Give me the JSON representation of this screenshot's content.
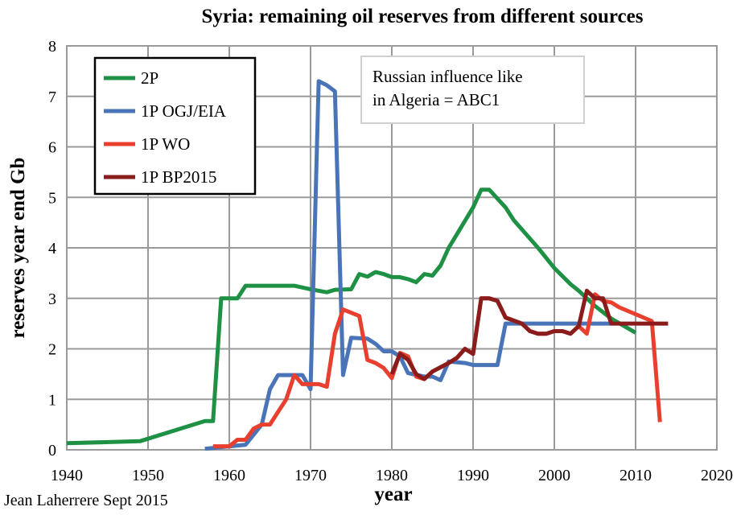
{
  "chart_data": {
    "type": "line",
    "title": "Syria: remaining oil reserves from different sources",
    "xlabel": "year",
    "ylabel": "reserves year end Gb",
    "xlim": [
      1940,
      2020
    ],
    "ylim": [
      0,
      8
    ],
    "x_ticks": [
      "1940",
      "1950",
      "1960",
      "1970",
      "1980",
      "1990",
      "2000",
      "2010",
      "2020"
    ],
    "y_ticks": [
      "0",
      "1",
      "2",
      "3",
      "4",
      "5",
      "6",
      "7",
      "8"
    ],
    "grid": true,
    "legend": "top-left",
    "annotation": [
      "Russian influence like",
      "in Algeria = ABC1"
    ],
    "credit": "Jean Laherrere Sept 2015",
    "series": [
      {
        "name": "2P",
        "color": "#1e9145",
        "points": [
          [
            1940,
            0.13
          ],
          [
            1949,
            0.17
          ],
          [
            1950,
            0.22
          ],
          [
            1957,
            0.57
          ],
          [
            1958,
            0.57
          ],
          [
            1959,
            3.0
          ],
          [
            1961,
            3.0
          ],
          [
            1962,
            3.25
          ],
          [
            1968,
            3.25
          ],
          [
            1970,
            3.18
          ],
          [
            1972,
            3.12
          ],
          [
            1973,
            3.17
          ],
          [
            1975,
            3.18
          ],
          [
            1976,
            3.48
          ],
          [
            1977,
            3.43
          ],
          [
            1978,
            3.52
          ],
          [
            1979,
            3.48
          ],
          [
            1980,
            3.42
          ],
          [
            1981,
            3.42
          ],
          [
            1982,
            3.38
          ],
          [
            1983,
            3.32
          ],
          [
            1984,
            3.48
          ],
          [
            1985,
            3.45
          ],
          [
            1986,
            3.65
          ],
          [
            1987,
            4.0
          ],
          [
            1990,
            4.8
          ],
          [
            1991,
            5.15
          ],
          [
            1992,
            5.15
          ],
          [
            1994,
            4.8
          ],
          [
            1995,
            4.55
          ],
          [
            1998,
            4.0
          ],
          [
            2000,
            3.6
          ],
          [
            2002,
            3.28
          ],
          [
            2003,
            3.15
          ],
          [
            2005,
            2.85
          ],
          [
            2007,
            2.6
          ],
          [
            2010,
            2.32
          ]
        ]
      },
      {
        "name": "1P OGJ/EIA",
        "color": "#4a74b8",
        "points": [
          [
            1957,
            0.02
          ],
          [
            1960,
            0.07
          ],
          [
            1962,
            0.1
          ],
          [
            1964,
            0.5
          ],
          [
            1965,
            1.2
          ],
          [
            1966,
            1.48
          ],
          [
            1969,
            1.48
          ],
          [
            1970,
            1.2
          ],
          [
            1971,
            7.3
          ],
          [
            1972,
            7.22
          ],
          [
            1973,
            7.1
          ],
          [
            1974,
            1.48
          ],
          [
            1975,
            2.22
          ],
          [
            1977,
            2.2
          ],
          [
            1978,
            2.1
          ],
          [
            1979,
            1.95
          ],
          [
            1980,
            1.95
          ],
          [
            1981,
            1.85
          ],
          [
            1982,
            1.52
          ],
          [
            1984,
            1.45
          ],
          [
            1985,
            1.45
          ],
          [
            1986,
            1.38
          ],
          [
            1987,
            1.75
          ],
          [
            1989,
            1.72
          ],
          [
            1990,
            1.68
          ],
          [
            1993,
            1.68
          ],
          [
            1994,
            2.5
          ],
          [
            2007,
            2.5
          ]
        ]
      },
      {
        "name": "1P WO",
        "color": "#e83f2f",
        "points": [
          [
            1958,
            0.07
          ],
          [
            1960,
            0.07
          ],
          [
            1961,
            0.2
          ],
          [
            1962,
            0.2
          ],
          [
            1963,
            0.42
          ],
          [
            1964,
            0.5
          ],
          [
            1965,
            0.5
          ],
          [
            1966,
            0.75
          ],
          [
            1967,
            1.0
          ],
          [
            1968,
            1.48
          ],
          [
            1969,
            1.3
          ],
          [
            1971,
            1.3
          ],
          [
            1972,
            1.25
          ],
          [
            1973,
            2.3
          ],
          [
            1974,
            2.78
          ],
          [
            1976,
            2.65
          ],
          [
            1977,
            1.78
          ],
          [
            1978,
            1.72
          ],
          [
            1979,
            1.62
          ],
          [
            1980,
            1.42
          ],
          [
            1981,
            1.92
          ],
          [
            1982,
            1.85
          ],
          [
            1983,
            1.45
          ],
          [
            1984,
            1.4
          ],
          [
            1985,
            1.55
          ],
          [
            1987,
            1.72
          ],
          [
            1988,
            1.82
          ],
          [
            1989,
            2.0
          ],
          [
            1990,
            1.9
          ],
          [
            1991,
            3.0
          ],
          [
            1992,
            3.0
          ],
          [
            1993,
            2.95
          ],
          [
            1994,
            2.62
          ],
          [
            1996,
            2.5
          ],
          [
            1997,
            2.35
          ],
          [
            1998,
            2.3
          ],
          [
            1999,
            2.3
          ],
          [
            2000,
            2.35
          ],
          [
            2001,
            2.35
          ],
          [
            2002,
            2.3
          ],
          [
            2003,
            2.45
          ],
          [
            2004,
            2.3
          ],
          [
            2005,
            3.08
          ],
          [
            2006,
            2.95
          ],
          [
            2007,
            2.92
          ],
          [
            2008,
            2.82
          ],
          [
            2012,
            2.55
          ],
          [
            2013,
            0.55
          ]
        ]
      },
      {
        "name": "1P BP2015",
        "color": "#8b1c1c",
        "points": [
          [
            1980,
            1.5
          ],
          [
            1981,
            1.9
          ],
          [
            1982,
            1.78
          ],
          [
            1983,
            1.5
          ],
          [
            1984,
            1.4
          ],
          [
            1985,
            1.55
          ],
          [
            1987,
            1.72
          ],
          [
            1988,
            1.82
          ],
          [
            1989,
            2.0
          ],
          [
            1990,
            1.9
          ],
          [
            1991,
            3.0
          ],
          [
            1992,
            3.0
          ],
          [
            1993,
            2.95
          ],
          [
            1994,
            2.62
          ],
          [
            1996,
            2.5
          ],
          [
            1997,
            2.35
          ],
          [
            1998,
            2.3
          ],
          [
            1999,
            2.3
          ],
          [
            2000,
            2.35
          ],
          [
            2001,
            2.35
          ],
          [
            2002,
            2.3
          ],
          [
            2003,
            2.45
          ],
          [
            2004,
            3.15
          ],
          [
            2005,
            3.0
          ],
          [
            2006,
            3.0
          ],
          [
            2007,
            2.5
          ],
          [
            2014,
            2.5
          ]
        ]
      }
    ]
  }
}
